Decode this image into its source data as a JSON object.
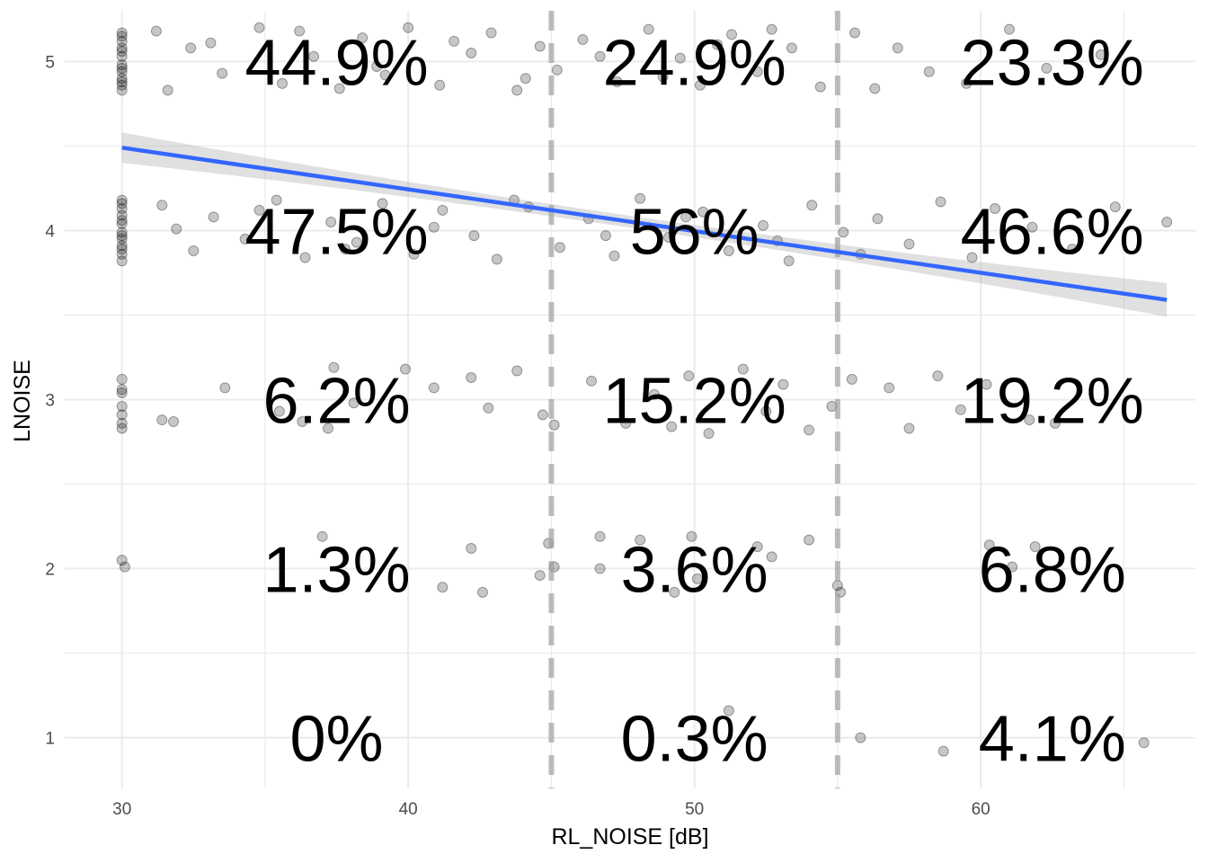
{
  "chart_data": {
    "type": "scatter",
    "xlabel": "RL_NOISE [dB]",
    "ylabel": "LNOISE",
    "xlim": [
      28,
      67.5
    ],
    "ylim": [
      0.7,
      5.3
    ],
    "x_ticks": [
      30,
      40,
      50,
      60
    ],
    "y_ticks": [
      1,
      2,
      3,
      4,
      5
    ],
    "grid": true,
    "jitter": true,
    "thresholds": [
      45,
      55
    ],
    "threshold_style": "dashed",
    "regression": {
      "method": "linear",
      "x_range": [
        30,
        66.5
      ],
      "y_start": 4.49,
      "y_end": 3.59,
      "confidence_band": true
    },
    "bands": [
      "<45",
      "45-55",
      ">55"
    ],
    "percent_labels": [
      {
        "band": 0,
        "level": 5,
        "text": "44.9%"
      },
      {
        "band": 1,
        "level": 5,
        "text": "24.9%"
      },
      {
        "band": 2,
        "level": 5,
        "text": "23.3%"
      },
      {
        "band": 0,
        "level": 4,
        "text": "47.5%"
      },
      {
        "band": 1,
        "level": 4,
        "text": "56%"
      },
      {
        "band": 2,
        "level": 4,
        "text": "46.6%"
      },
      {
        "band": 0,
        "level": 3,
        "text": "6.2%"
      },
      {
        "band": 1,
        "level": 3,
        "text": "15.2%"
      },
      {
        "band": 2,
        "level": 3,
        "text": "19.2%"
      },
      {
        "band": 0,
        "level": 2,
        "text": "1.3%"
      },
      {
        "band": 1,
        "level": 2,
        "text": "3.6%"
      },
      {
        "band": 2,
        "level": 2,
        "text": "6.8%"
      },
      {
        "band": 0,
        "level": 1,
        "text": "0%"
      },
      {
        "band": 1,
        "level": 1,
        "text": "0.3%"
      },
      {
        "band": 2,
        "level": 1,
        "text": "4.1%"
      }
    ],
    "points": [
      {
        "x": 30,
        "y": 5.17
      },
      {
        "x": 30,
        "y": 5.12
      },
      {
        "x": 30,
        "y": 5.08
      },
      {
        "x": 30,
        "y": 5.03
      },
      {
        "x": 30,
        "y": 4.98
      },
      {
        "x": 30,
        "y": 4.94
      },
      {
        "x": 30,
        "y": 4.9
      },
      {
        "x": 30,
        "y": 4.86
      },
      {
        "x": 30,
        "y": 4.83
      },
      {
        "x": 30,
        "y": 5.15
      },
      {
        "x": 30,
        "y": 5.06
      },
      {
        "x": 30,
        "y": 4.96
      },
      {
        "x": 30,
        "y": 4.88
      },
      {
        "x": 30,
        "y": 4.18
      },
      {
        "x": 30,
        "y": 4.13
      },
      {
        "x": 30,
        "y": 4.09
      },
      {
        "x": 30,
        "y": 4.04
      },
      {
        "x": 30,
        "y": 3.99
      },
      {
        "x": 30,
        "y": 3.95
      },
      {
        "x": 30,
        "y": 3.91
      },
      {
        "x": 30,
        "y": 3.86
      },
      {
        "x": 30,
        "y": 3.82
      },
      {
        "x": 30,
        "y": 4.16
      },
      {
        "x": 30,
        "y": 4.06
      },
      {
        "x": 30,
        "y": 3.97
      },
      {
        "x": 30,
        "y": 3.89
      },
      {
        "x": 30,
        "y": 3.12
      },
      {
        "x": 30,
        "y": 3.06
      },
      {
        "x": 30,
        "y": 3.04
      },
      {
        "x": 30,
        "y": 2.96
      },
      {
        "x": 30,
        "y": 2.91
      },
      {
        "x": 30,
        "y": 2.86
      },
      {
        "x": 30,
        "y": 2.83
      },
      {
        "x": 30,
        "y": 2.05
      },
      {
        "x": 30.1,
        "y": 2.01
      },
      {
        "x": 31.2,
        "y": 5.18
      },
      {
        "x": 32.4,
        "y": 5.08
      },
      {
        "x": 33.5,
        "y": 4.93
      },
      {
        "x": 34.8,
        "y": 5.2
      },
      {
        "x": 35.6,
        "y": 4.87
      },
      {
        "x": 36.7,
        "y": 5.03
      },
      {
        "x": 37.6,
        "y": 4.84
      },
      {
        "x": 38.4,
        "y": 5.14
      },
      {
        "x": 39.2,
        "y": 4.92
      },
      {
        "x": 40.0,
        "y": 5.2
      },
      {
        "x": 41.1,
        "y": 4.86
      },
      {
        "x": 42.2,
        "y": 5.05
      },
      {
        "x": 42.9,
        "y": 5.17
      },
      {
        "x": 43.8,
        "y": 4.83
      },
      {
        "x": 44.6,
        "y": 5.09
      },
      {
        "x": 45.2,
        "y": 4.95
      },
      {
        "x": 46.1,
        "y": 5.13
      },
      {
        "x": 47.3,
        "y": 4.88
      },
      {
        "x": 48.4,
        "y": 5.19
      },
      {
        "x": 49.5,
        "y": 5.02
      },
      {
        "x": 50.2,
        "y": 4.86
      },
      {
        "x": 51.3,
        "y": 5.16
      },
      {
        "x": 52.2,
        "y": 4.94
      },
      {
        "x": 53.4,
        "y": 5.08
      },
      {
        "x": 54.4,
        "y": 4.85
      },
      {
        "x": 55.6,
        "y": 5.17
      },
      {
        "x": 56.3,
        "y": 4.84
      },
      {
        "x": 57.1,
        "y": 5.08
      },
      {
        "x": 58.2,
        "y": 4.94
      },
      {
        "x": 59.5,
        "y": 4.87
      },
      {
        "x": 61.0,
        "y": 5.19
      },
      {
        "x": 62.3,
        "y": 4.96
      },
      {
        "x": 64.2,
        "y": 5.04
      },
      {
        "x": 31.6,
        "y": 4.83
      },
      {
        "x": 33.1,
        "y": 5.11
      },
      {
        "x": 36.2,
        "y": 5.18
      },
      {
        "x": 38.9,
        "y": 4.97
      },
      {
        "x": 41.6,
        "y": 5.12
      },
      {
        "x": 44.1,
        "y": 4.9
      },
      {
        "x": 46.7,
        "y": 5.03
      },
      {
        "x": 48.9,
        "y": 4.91
      },
      {
        "x": 50.8,
        "y": 5.1
      },
      {
        "x": 52.7,
        "y": 5.19
      },
      {
        "x": 31.4,
        "y": 4.15
      },
      {
        "x": 32.5,
        "y": 3.88
      },
      {
        "x": 33.2,
        "y": 4.08
      },
      {
        "x": 34.3,
        "y": 3.95
      },
      {
        "x": 35.4,
        "y": 4.18
      },
      {
        "x": 36.4,
        "y": 3.84
      },
      {
        "x": 37.3,
        "y": 4.05
      },
      {
        "x": 38.2,
        "y": 3.93
      },
      {
        "x": 39.1,
        "y": 4.16
      },
      {
        "x": 40.2,
        "y": 3.86
      },
      {
        "x": 41.2,
        "y": 4.12
      },
      {
        "x": 42.3,
        "y": 3.97
      },
      {
        "x": 43.1,
        "y": 3.83
      },
      {
        "x": 44.2,
        "y": 4.14
      },
      {
        "x": 45.3,
        "y": 3.9
      },
      {
        "x": 46.3,
        "y": 4.07
      },
      {
        "x": 47.2,
        "y": 3.85
      },
      {
        "x": 48.1,
        "y": 4.19
      },
      {
        "x": 49.1,
        "y": 3.96
      },
      {
        "x": 50.3,
        "y": 4.11
      },
      {
        "x": 51.2,
        "y": 3.88
      },
      {
        "x": 52.4,
        "y": 4.03
      },
      {
        "x": 53.3,
        "y": 3.82
      },
      {
        "x": 54.1,
        "y": 4.15
      },
      {
        "x": 55.2,
        "y": 3.99
      },
      {
        "x": 56.4,
        "y": 4.07
      },
      {
        "x": 57.5,
        "y": 3.92
      },
      {
        "x": 58.6,
        "y": 4.17
      },
      {
        "x": 59.7,
        "y": 3.84
      },
      {
        "x": 60.5,
        "y": 4.13
      },
      {
        "x": 61.8,
        "y": 4.02
      },
      {
        "x": 63.2,
        "y": 3.89
      },
      {
        "x": 64.7,
        "y": 4.14
      },
      {
        "x": 66.5,
        "y": 4.05
      },
      {
        "x": 31.9,
        "y": 4.01
      },
      {
        "x": 34.8,
        "y": 4.12
      },
      {
        "x": 37.8,
        "y": 3.89
      },
      {
        "x": 40.9,
        "y": 4.02
      },
      {
        "x": 43.7,
        "y": 4.18
      },
      {
        "x": 46.9,
        "y": 3.97
      },
      {
        "x": 49.7,
        "y": 4.08
      },
      {
        "x": 52.9,
        "y": 3.94
      },
      {
        "x": 55.8,
        "y": 3.86
      },
      {
        "x": 31.4,
        "y": 2.88
      },
      {
        "x": 31.8,
        "y": 2.87
      },
      {
        "x": 33.6,
        "y": 3.07
      },
      {
        "x": 35.5,
        "y": 2.93
      },
      {
        "x": 36.3,
        "y": 2.87
      },
      {
        "x": 37.2,
        "y": 2.83
      },
      {
        "x": 37.4,
        "y": 3.19
      },
      {
        "x": 38.1,
        "y": 2.98
      },
      {
        "x": 39.9,
        "y": 3.18
      },
      {
        "x": 40.9,
        "y": 3.07
      },
      {
        "x": 42.2,
        "y": 3.13
      },
      {
        "x": 42.8,
        "y": 2.95
      },
      {
        "x": 43.8,
        "y": 3.17
      },
      {
        "x": 44.7,
        "y": 2.91
      },
      {
        "x": 45.1,
        "y": 2.85
      },
      {
        "x": 46.4,
        "y": 3.11
      },
      {
        "x": 47.6,
        "y": 2.86
      },
      {
        "x": 48.6,
        "y": 3.03
      },
      {
        "x": 49.2,
        "y": 2.84
      },
      {
        "x": 49.8,
        "y": 3.14
      },
      {
        "x": 50.5,
        "y": 2.8
      },
      {
        "x": 51.7,
        "y": 3.18
      },
      {
        "x": 52.5,
        "y": 2.93
      },
      {
        "x": 53.1,
        "y": 3.09
      },
      {
        "x": 54.0,
        "y": 2.82
      },
      {
        "x": 54.8,
        "y": 2.96
      },
      {
        "x": 55.5,
        "y": 3.12
      },
      {
        "x": 56.8,
        "y": 3.07
      },
      {
        "x": 57.5,
        "y": 2.83
      },
      {
        "x": 58.5,
        "y": 3.14
      },
      {
        "x": 59.3,
        "y": 2.94
      },
      {
        "x": 60.2,
        "y": 3.09
      },
      {
        "x": 61.7,
        "y": 2.88
      },
      {
        "x": 62.6,
        "y": 2.86
      },
      {
        "x": 37.0,
        "y": 2.19
      },
      {
        "x": 41.2,
        "y": 1.89
      },
      {
        "x": 42.2,
        "y": 2.12
      },
      {
        "x": 42.6,
        "y": 1.86
      },
      {
        "x": 44.6,
        "y": 1.96
      },
      {
        "x": 44.9,
        "y": 2.15
      },
      {
        "x": 45.1,
        "y": 2.01
      },
      {
        "x": 46.7,
        "y": 2.0
      },
      {
        "x": 46.7,
        "y": 2.19
      },
      {
        "x": 48.1,
        "y": 2.17
      },
      {
        "x": 49.3,
        "y": 1.86
      },
      {
        "x": 49.9,
        "y": 2.19
      },
      {
        "x": 50.1,
        "y": 1.94
      },
      {
        "x": 52.2,
        "y": 2.13
      },
      {
        "x": 52.7,
        "y": 2.07
      },
      {
        "x": 54.0,
        "y": 2.17
      },
      {
        "x": 55.0,
        "y": 1.9
      },
      {
        "x": 55.1,
        "y": 1.86
      },
      {
        "x": 60.3,
        "y": 2.14
      },
      {
        "x": 61.1,
        "y": 2.01
      },
      {
        "x": 61.9,
        "y": 2.13
      },
      {
        "x": 51.2,
        "y": 1.16
      },
      {
        "x": 55.8,
        "y": 1.0
      },
      {
        "x": 58.7,
        "y": 0.92
      },
      {
        "x": 65.7,
        "y": 0.97
      }
    ]
  }
}
